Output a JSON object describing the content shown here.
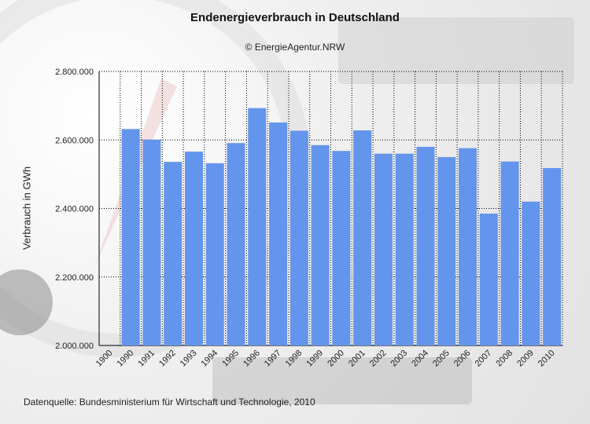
{
  "title": "Endenergieverbrauch in Deutschland",
  "copyright": "© EnergieAgentur.NRW",
  "source": "Datenquelle: Bundesministerium für Wirtschaft und Technologie, 2010",
  "colors": {
    "bar": "#6495ED",
    "grid": "#000000",
    "background": "#e6e6e6"
  },
  "chart_data": {
    "type": "bar",
    "title": "Endenergieverbrauch in Deutschland",
    "xlabel": "",
    "ylabel": "Verbrauch in GWh",
    "ylim": [
      2000000,
      2800000
    ],
    "yticks": [
      2000000,
      2200000,
      2400000,
      2600000,
      2800000
    ],
    "ytick_labels": [
      "2.000.000",
      "2.200.000",
      "2.400.000",
      "2.600.000",
      "2.800.000"
    ],
    "grid": true,
    "categories": [
      "1900",
      "1990",
      "1991",
      "1992",
      "1993",
      "1994",
      "1995",
      "1996",
      "1997",
      "1998",
      "1999",
      "2000",
      "2001",
      "2002",
      "2003",
      "2004",
      "2005",
      "2006",
      "2007",
      "2008",
      "2009",
      "2010"
    ],
    "values": [
      null,
      2632000,
      2601000,
      2536000,
      2566000,
      2532000,
      2591000,
      2693000,
      2651000,
      2627000,
      2585000,
      2568000,
      2628000,
      2560000,
      2560000,
      2580000,
      2550000,
      2576000,
      2385000,
      2537000,
      2420000,
      2518000
    ]
  }
}
